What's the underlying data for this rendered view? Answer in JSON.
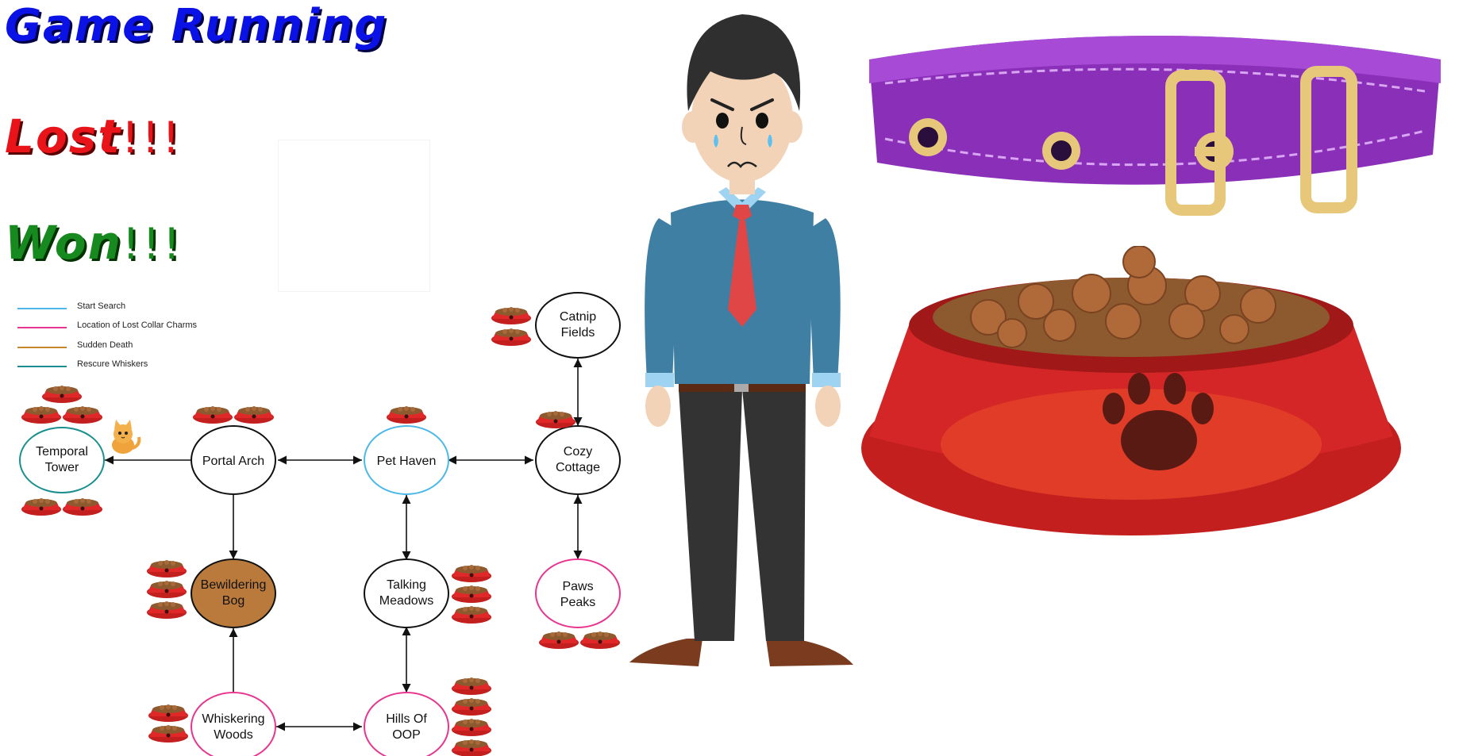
{
  "status": {
    "running": "Game Running",
    "lost": "Lost",
    "lost_bang": "!!!",
    "won": "Won",
    "won_bang": "!!!"
  },
  "legend": [
    {
      "label": "Start Search",
      "color": "#4bb8e8"
    },
    {
      "label": "Location of Lost Collar Charms",
      "color": "#e8358f"
    },
    {
      "label": "Sudden Death",
      "color": "#c8862a"
    },
    {
      "label": "Rescure Whiskers",
      "color": "#1b8f8f"
    }
  ],
  "map": {
    "nodes": {
      "temporal_tower": "Temporal Tower",
      "portal_arch": "Portal Arch",
      "pet_haven": "Pet Haven",
      "cozy_cottage": "Cozy Cottage",
      "catnip_fields": "Catnip Fields",
      "bewildering_bog": "Bewildering Bog",
      "talking_meadows": "Talking Meadows",
      "paws_peaks": "Paws Peaks",
      "whiskering_woods": "Whiskering Woods",
      "hills_of_oop": "Hills Of OOP"
    },
    "colors": {
      "start": "#4bb8e8",
      "charms": "#e8358f",
      "death_fill": "#b97a3c",
      "rescue": "#1b8f8f",
      "default": "#111111"
    }
  },
  "icons": {
    "kitten": "kitten-icon",
    "food_bowl": "food-bowl-icon",
    "sad_man": "sad-man-illustration",
    "collar": "purple-collar-illustration",
    "big_bowl": "pet-food-bowl-illustration"
  }
}
